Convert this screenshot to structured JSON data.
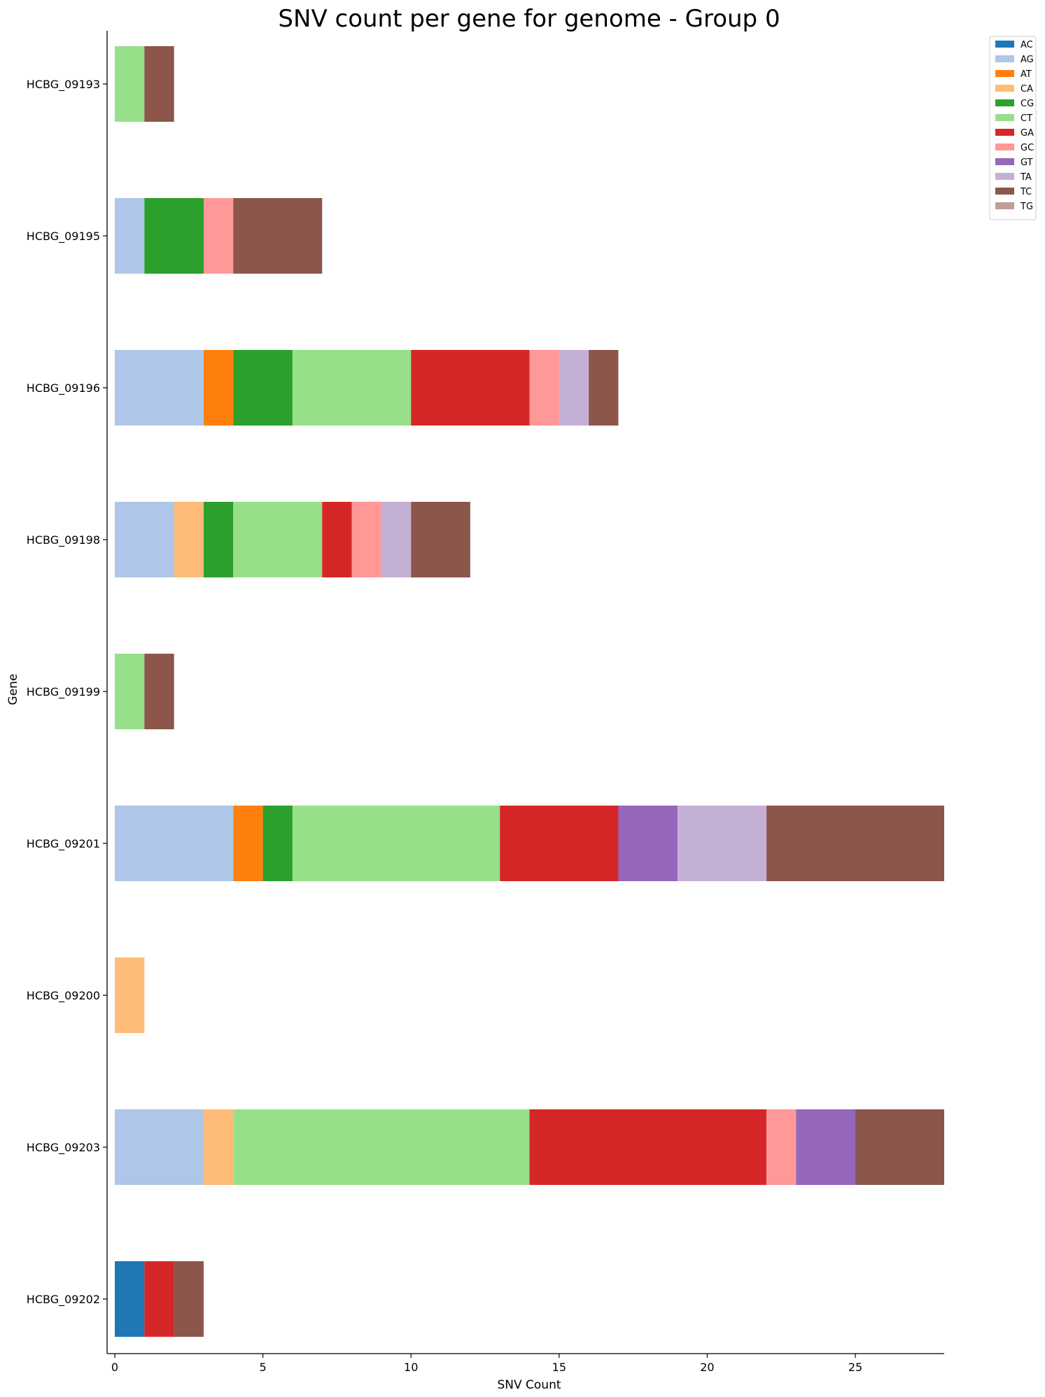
{
  "chart_data": {
    "type": "bar",
    "orientation": "horizontal",
    "stacked": true,
    "title": "SNV count per gene for genome - Group 0",
    "xlabel": "SNV Count",
    "ylabel": "Gene",
    "xlim": [
      0,
      28
    ],
    "xticks": [
      0,
      5,
      10,
      15,
      20,
      25
    ],
    "grid": false,
    "legend_position": "top-right, outside plot",
    "categories": [
      "HCBG_09193",
      "HCBG_09195",
      "HCBG_09196",
      "HCBG_09198",
      "HCBG_09199",
      "HCBG_09201",
      "HCBG_09200",
      "HCBG_09203",
      "HCBG_09202"
    ],
    "series": [
      {
        "name": "AC",
        "color": "#1f77b4",
        "values": [
          0,
          0,
          0,
          0,
          0,
          0,
          0,
          0,
          1
        ]
      },
      {
        "name": "AG",
        "color": "#aec7e8",
        "values": [
          0,
          1,
          3,
          2,
          0,
          4,
          0,
          3,
          0
        ]
      },
      {
        "name": "AT",
        "color": "#ff7f0e",
        "values": [
          0,
          0,
          1,
          0,
          0,
          1,
          0,
          0,
          0
        ]
      },
      {
        "name": "CA",
        "color": "#ffbb78",
        "values": [
          0,
          0,
          0,
          1,
          0,
          0,
          1,
          1,
          0
        ]
      },
      {
        "name": "CG",
        "color": "#2ca02c",
        "values": [
          0,
          2,
          2,
          1,
          0,
          1,
          0,
          0,
          0
        ]
      },
      {
        "name": "CT",
        "color": "#98df8a",
        "values": [
          1,
          0,
          4,
          3,
          1,
          7,
          0,
          10,
          0
        ]
      },
      {
        "name": "GA",
        "color": "#d62728",
        "values": [
          0,
          0,
          4,
          1,
          0,
          4,
          0,
          8,
          1
        ]
      },
      {
        "name": "GC",
        "color": "#ff9896",
        "values": [
          0,
          1,
          1,
          1,
          0,
          0,
          0,
          1,
          0
        ]
      },
      {
        "name": "GT",
        "color": "#9467bd",
        "values": [
          0,
          0,
          0,
          0,
          0,
          2,
          0,
          2,
          0
        ]
      },
      {
        "name": "TA",
        "color": "#c5b0d5",
        "values": [
          0,
          0,
          1,
          1,
          0,
          3,
          0,
          0,
          0
        ]
      },
      {
        "name": "TC",
        "color": "#8c564b",
        "values": [
          1,
          3,
          1,
          2,
          1,
          6,
          0,
          3,
          1
        ]
      },
      {
        "name": "TG",
        "color": "#c49c94",
        "values": [
          0,
          0,
          0,
          0,
          0,
          0,
          0,
          0,
          0
        ]
      }
    ]
  }
}
